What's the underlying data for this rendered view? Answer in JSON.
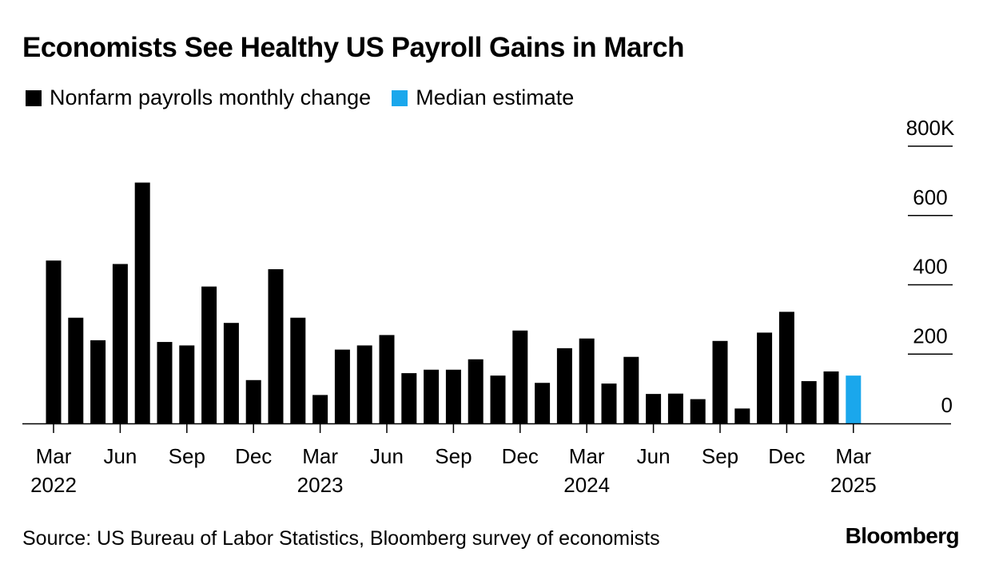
{
  "title": "Economists See Healthy US Payroll Gains in March",
  "legend": [
    {
      "label": "Nonfarm payrolls monthly change",
      "color": "#000000"
    },
    {
      "label": "Median estimate",
      "color": "#1aa7ec"
    }
  ],
  "source": "Source: US Bureau of Labor Statistics, Bloomberg survey of economists",
  "logo": "Bloomberg",
  "chart_data": {
    "type": "bar",
    "title": "Economists See Healthy US Payroll Gains in March",
    "xlabel": "",
    "ylabel": "",
    "ylim": [
      0,
      800
    ],
    "y_ticks": [
      {
        "value": 0,
        "label": "0"
      },
      {
        "value": 200,
        "label": "200"
      },
      {
        "value": 400,
        "label": "400"
      },
      {
        "value": 600,
        "label": "600"
      },
      {
        "value": 800,
        "label": "800K"
      }
    ],
    "categories": [
      "2022-03",
      "2022-04",
      "2022-05",
      "2022-06",
      "2022-07",
      "2022-08",
      "2022-09",
      "2022-10",
      "2022-11",
      "2022-12",
      "2023-01",
      "2023-02",
      "2023-03",
      "2023-04",
      "2023-05",
      "2023-06",
      "2023-07",
      "2023-08",
      "2023-09",
      "2023-10",
      "2023-11",
      "2023-12",
      "2024-01",
      "2024-02",
      "2024-03",
      "2024-04",
      "2024-05",
      "2024-06",
      "2024-07",
      "2024-08",
      "2024-09",
      "2024-10",
      "2024-11",
      "2024-12",
      "2025-01",
      "2025-02",
      "2025-03"
    ],
    "series": [
      {
        "name": "Nonfarm payrolls monthly change",
        "color": "#000000",
        "values": [
          470,
          305,
          240,
          460,
          695,
          235,
          225,
          395,
          290,
          125,
          445,
          305,
          82,
          213,
          225,
          255,
          145,
          155,
          155,
          185,
          138,
          268,
          117,
          217,
          245,
          115,
          192,
          85,
          86,
          70,
          238,
          43,
          262,
          322,
          122,
          150,
          null
        ]
      },
      {
        "name": "Median estimate",
        "color": "#1aa7ec",
        "values": [
          null,
          null,
          null,
          null,
          null,
          null,
          null,
          null,
          null,
          null,
          null,
          null,
          null,
          null,
          null,
          null,
          null,
          null,
          null,
          null,
          null,
          null,
          null,
          null,
          null,
          null,
          null,
          null,
          null,
          null,
          null,
          null,
          null,
          null,
          null,
          null,
          138
        ]
      }
    ],
    "x_ticks": [
      {
        "index": 0,
        "label": "Mar",
        "year": "2022"
      },
      {
        "index": 3,
        "label": "Jun",
        "year": ""
      },
      {
        "index": 6,
        "label": "Sep",
        "year": ""
      },
      {
        "index": 9,
        "label": "Dec",
        "year": ""
      },
      {
        "index": 12,
        "label": "Mar",
        "year": "2023"
      },
      {
        "index": 15,
        "label": "Jun",
        "year": ""
      },
      {
        "index": 18,
        "label": "Sep",
        "year": ""
      },
      {
        "index": 21,
        "label": "Dec",
        "year": ""
      },
      {
        "index": 24,
        "label": "Mar",
        "year": "2024"
      },
      {
        "index": 27,
        "label": "Jun",
        "year": ""
      },
      {
        "index": 30,
        "label": "Sep",
        "year": ""
      },
      {
        "index": 33,
        "label": "Dec",
        "year": ""
      },
      {
        "index": 36,
        "label": "Mar",
        "year": "2025"
      }
    ],
    "gridlines": true,
    "legend_position": "top-left"
  }
}
